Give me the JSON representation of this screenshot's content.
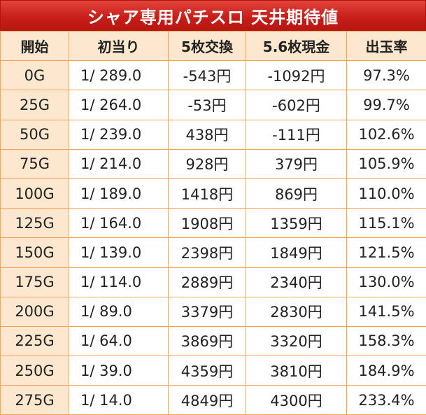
{
  "title": "シャア専用パチスロ 天井期待値",
  "headers": [
    "開始",
    "初当り",
    "5枚交換",
    "5.6枚現金",
    "出玉率"
  ],
  "rows": [
    {
      "start": "0G",
      "hit": "1/ 289.0",
      "ex5": "-543円",
      "ex56": "-1092円",
      "rate": "97.3%",
      "ex5_neg": true,
      "ex56_neg": true,
      "rate_neg": true
    },
    {
      "start": "25G",
      "hit": "1/ 264.0",
      "ex5": "-53円",
      "ex56": "-602円",
      "rate": "99.7%",
      "ex5_neg": true,
      "ex56_neg": true,
      "rate_neg": true
    },
    {
      "start": "50G",
      "hit": "1/ 239.0",
      "ex5": "438円",
      "ex56": "-111円",
      "rate": "102.6%",
      "ex5_neg": false,
      "ex56_neg": true,
      "rate_neg": false
    },
    {
      "start": "75G",
      "hit": "1/ 214.0",
      "ex5": "928円",
      "ex56": "379円",
      "rate": "105.9%",
      "ex5_neg": false,
      "ex56_neg": false,
      "rate_neg": false
    },
    {
      "start": "100G",
      "hit": "1/ 189.0",
      "ex5": "1418円",
      "ex56": "869円",
      "rate": "110.0%",
      "ex5_neg": false,
      "ex56_neg": false,
      "rate_neg": false
    },
    {
      "start": "125G",
      "hit": "1/ 164.0",
      "ex5": "1908円",
      "ex56": "1359円",
      "rate": "115.1%",
      "ex5_neg": false,
      "ex56_neg": false,
      "rate_neg": false
    },
    {
      "start": "150G",
      "hit": "1/ 139.0",
      "ex5": "2398円",
      "ex56": "1849円",
      "rate": "121.5%",
      "ex5_neg": false,
      "ex56_neg": false,
      "rate_neg": false
    },
    {
      "start": "175G",
      "hit": "1/ 114.0",
      "ex5": "2889円",
      "ex56": "2340円",
      "rate": "130.0%",
      "ex5_neg": false,
      "ex56_neg": false,
      "rate_neg": false
    },
    {
      "start": "200G",
      "hit": "1/ 89.0",
      "ex5": "3379円",
      "ex56": "2830円",
      "rate": "141.5%",
      "ex5_neg": false,
      "ex56_neg": false,
      "rate_neg": false
    },
    {
      "start": "225G",
      "hit": "1/ 64.0",
      "ex5": "3869円",
      "ex56": "3320円",
      "rate": "158.3%",
      "ex5_neg": false,
      "ex56_neg": false,
      "rate_neg": false
    },
    {
      "start": "250G",
      "hit": "1/ 39.0",
      "ex5": "4359円",
      "ex56": "3810円",
      "rate": "184.9%",
      "ex5_neg": false,
      "ex56_neg": false,
      "rate_neg": false
    },
    {
      "start": "275G",
      "hit": "1/ 14.0",
      "ex5": "4849円",
      "ex56": "4300円",
      "rate": "233.4%",
      "ex5_neg": false,
      "ex56_neg": false,
      "rate_neg": false
    }
  ],
  "colors": {
    "negative": "#e0141b",
    "positive": "#1e1ed6",
    "header_bg": "#fde8cf",
    "title_bg": "#c91f1a",
    "border": "#f1a455"
  }
}
